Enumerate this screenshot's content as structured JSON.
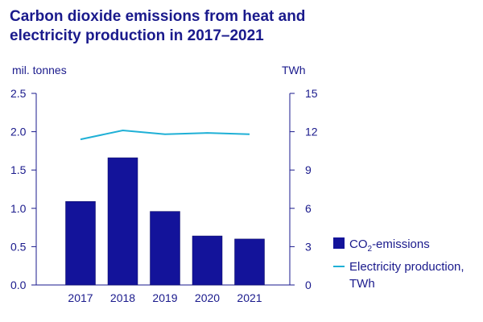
{
  "chart_data": {
    "type": "bar",
    "title_lines": [
      "Carbon dioxide emissions from heat and",
      "electricity production in 2017–2021"
    ],
    "categories": [
      "2017",
      "2018",
      "2019",
      "2020",
      "2021"
    ],
    "y_left": {
      "unit": "mil. tonnes",
      "min": 0,
      "max": 2.5,
      "ticks": [
        "0.0",
        "0.5",
        "1.0",
        "1.5",
        "2.0",
        "2.5"
      ]
    },
    "y_right": {
      "unit": "TWh",
      "min": 0,
      "max": 15,
      "ticks": [
        "0",
        "3",
        "6",
        "9",
        "12",
        "15"
      ]
    },
    "series": [
      {
        "name_main": "CO",
        "name_sub": "2",
        "name_rest": "-emissions",
        "kind": "bar",
        "axis": "left",
        "color": "#13139a",
        "values": [
          1.09,
          1.66,
          0.96,
          0.64,
          0.6
        ]
      },
      {
        "name_lines": [
          "Electricity production,",
          "TWh"
        ],
        "kind": "line",
        "axis": "right",
        "color": "#1fb0d6",
        "values": [
          11.4,
          12.1,
          11.8,
          11.9,
          11.8
        ]
      }
    ],
    "legend_position": "right",
    "grid": false
  }
}
